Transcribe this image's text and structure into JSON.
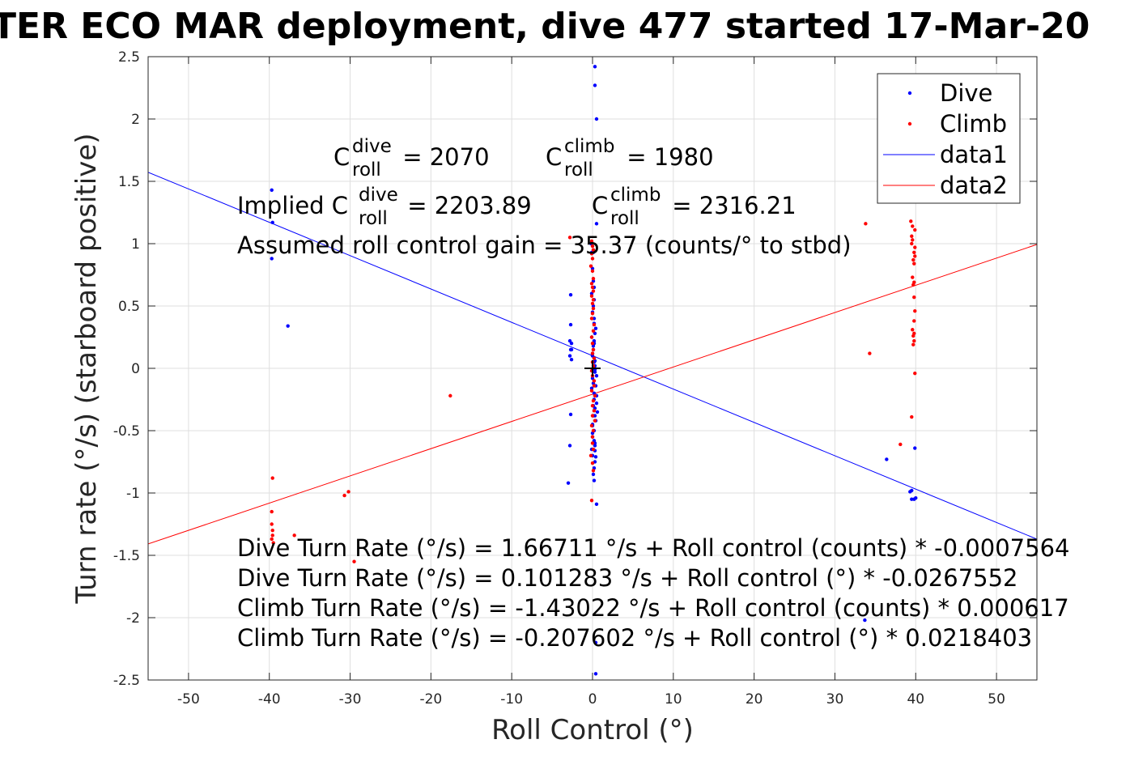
{
  "chart_data": {
    "type": "scatter",
    "title": "TER ECO MAR deployment, dive 477 started 17-Mar-20",
    "xlabel": "Roll Control (°)",
    "ylabel": "Turn rate (°/s) (starboard positive)",
    "xlim": [
      -55,
      55
    ],
    "ylim": [
      -2.5,
      2.5
    ],
    "xticks": [
      "-50",
      "-40",
      "-30",
      "-20",
      "-10",
      "0",
      "10",
      "20",
      "30",
      "40",
      "50"
    ],
    "yticks": [
      "-2.5",
      "-2",
      "-1.5",
      "-1",
      "-0.5",
      "0",
      "0.5",
      "1",
      "1.5",
      "2",
      "2.5"
    ],
    "grid": true,
    "legend_position": "top-right",
    "legend": [
      {
        "label": "Dive",
        "kind": "marker",
        "color": "#0000ff"
      },
      {
        "label": "Climb",
        "kind": "marker",
        "color": "#ff0000"
      },
      {
        "label": "data1",
        "kind": "line",
        "color": "#0000ff"
      },
      {
        "label": "data2",
        "kind": "line",
        "color": "#ff0000"
      }
    ],
    "series": [
      {
        "name": "Dive",
        "color": "#0000ff",
        "x": [
          0.3,
          0.3,
          0.5,
          0.5,
          0.4,
          0.4,
          0.5,
          -39.7,
          -39.6,
          -39.7,
          -37.7,
          -2.7,
          -2.7,
          -2.8,
          -2.6,
          -2.6,
          -2.8,
          -2.6,
          -2.7,
          -2.7,
          -2.8,
          -3.0,
          -0.2,
          -0.1,
          0.1,
          0,
          0.1,
          0.2,
          -0.1,
          0.2,
          0.1,
          0,
          0.2,
          0.4,
          -0.1,
          0.2,
          0.1,
          0,
          0.2,
          0.3,
          0.3,
          0,
          0.1,
          -0.1,
          0.2,
          0.2,
          0.5,
          0.3,
          0.6,
          0.1,
          0.4,
          0,
          0.2,
          0,
          0.3,
          -0.1,
          0,
          0.3,
          0.2,
          0.1,
          0.2,
          0.2,
          0.3,
          0.2,
          0.1,
          0,
          0.3,
          0.3,
          0.5,
          0.4,
          0.5,
          0.1,
          0.3,
          0,
          0,
          0.2,
          0.3,
          0.3,
          0.4,
          39.9,
          40.0,
          39.5,
          39.5,
          39.8,
          39.3,
          36.4,
          33.7
        ],
        "y": [
          2.42,
          2.27,
          2.0,
          1.16,
          -2.2,
          -2.45,
          -1.09,
          1.43,
          1.17,
          0.88,
          0.34,
          0.59,
          0.35,
          0.22,
          0.2,
          0.15,
          0.1,
          0.07,
          0.15,
          -0.37,
          -0.62,
          -0.92,
          1.0,
          0.93,
          0.93,
          0.8,
          0.7,
          0.65,
          0.6,
          0.55,
          0.5,
          0.45,
          0.4,
          0.32,
          0.25,
          0.2,
          0.15,
          0.1,
          0.05,
          0.02,
          -0.03,
          -0.08,
          -0.12,
          -0.16,
          -0.2,
          -0.25,
          -0.28,
          -0.32,
          -0.35,
          -0.38,
          -0.42,
          -0.45,
          -0.5,
          -0.55,
          -0.6,
          -0.65,
          -0.7,
          -0.75,
          -0.8,
          -0.85,
          -0.9,
          0.36,
          0.28,
          0.22,
          0.18,
          0.12,
          0.06,
          -0.01,
          -0.06,
          -0.14,
          -0.22,
          -0.3,
          -0.38,
          -0.46,
          -0.52,
          -0.58,
          -0.62,
          -0.66,
          -0.71,
          -0.64,
          -1.04,
          -0.98,
          -1.05,
          -1.05,
          -0.99,
          -0.73,
          -2.02
        ]
      },
      {
        "name": "Climb",
        "color": "#ff0000",
        "x": [
          -2.8,
          -0.1,
          0,
          0.1,
          -0.1,
          0,
          -0.2,
          0,
          0.1,
          -0.1,
          0,
          0.1,
          -0.1,
          0.1,
          0,
          0.1,
          0,
          -0.1,
          0.2,
          0.1,
          -0.1,
          0,
          0.1,
          0,
          0.2,
          0,
          0.1,
          -0.1,
          0,
          0.2,
          0.2,
          -0.1,
          0.3,
          0.1,
          0,
          0.2,
          0,
          0.3,
          -0.1,
          0.1,
          0,
          0,
          0.1,
          -0.2,
          0,
          0.1,
          -0.1,
          -17.6,
          -39.6,
          -39.7,
          -39.7,
          -39.6,
          -39.6,
          -39.7,
          -39.5,
          -36.9,
          -30.7,
          -30.2,
          -29.5,
          38.1,
          33.8,
          34.3,
          39.4,
          39.6,
          39.9,
          39.5,
          39.6,
          39.5,
          39.9,
          39.8,
          39.9,
          39.7,
          39.8,
          39.6,
          39.8,
          39.7,
          39.8,
          39.9,
          39.8,
          39.6,
          39.7,
          39.8,
          39.7,
          39.9,
          39.5,
          39.8
        ],
        "y": [
          1.05,
          1.02,
          0.98,
          0.95,
          0.92,
          0.88,
          0.82,
          0.78,
          0.72,
          0.68,
          0.65,
          0.62,
          0.58,
          0.55,
          0.52,
          0.48,
          0.44,
          0.4,
          0.35,
          0.3,
          0.25,
          0.2,
          0.15,
          0.12,
          0.08,
          0.05,
          0.02,
          -0.02,
          -0.06,
          -0.1,
          -0.14,
          -0.18,
          -0.22,
          -0.26,
          -0.3,
          -0.34,
          -0.38,
          -0.42,
          -0.46,
          -0.5,
          -0.55,
          -0.6,
          -0.65,
          -0.7,
          -0.76,
          -0.82,
          -1.06,
          -0.22,
          -0.88,
          -1.15,
          -1.25,
          -1.3,
          -1.34,
          -1.37,
          -1.4,
          -1.34,
          -1.02,
          -0.99,
          -1.55,
          -0.61,
          1.16,
          0.12,
          1.18,
          1.14,
          1.11,
          1.06,
          1.03,
          1.0,
          0.97,
          0.93,
          0.9,
          0.87,
          0.84,
          0.73,
          0.69,
          0.67,
          0.57,
          0.46,
          0.38,
          0.31,
          0.26,
          0.22,
          0.19,
          -0.04,
          -0.39,
          0.28
        ]
      }
    ],
    "fit_lines": [
      {
        "name": "data1",
        "color": "#0000ff",
        "intercept": 0.101283,
        "slope": -0.0267552
      },
      {
        "name": "data2",
        "color": "#ff0000",
        "intercept": -0.207602,
        "slope": 0.0218403
      }
    ],
    "origin_marker": "+",
    "annotations": {
      "c_dive": {
        "prefix": "C",
        "sup": "dive",
        "sub": "roll",
        "suffix": " = 2070"
      },
      "c_climb": {
        "prefix": "C",
        "sup": "climb",
        "sub": "roll",
        "suffix": " = 1980"
      },
      "implied_dive": {
        "prefix": "Implied C",
        "sup": "dive",
        "sub": "roll",
        "suffix": " = 2203.89"
      },
      "implied_climb": {
        "prefix": "C",
        "sup": "climb",
        "sub": "roll",
        "suffix": " = 2316.21"
      },
      "gain": "Assumed roll control gain = 35.37 (counts/° to stbd)",
      "eq1": "Dive Turn Rate (°/s) = 1.66711 °/s + Roll control (counts) * -0.0007564",
      "eq2": "Dive Turn Rate (°/s) = 0.101283 °/s + Roll control (°) * -0.0267552",
      "eq3": "Climb Turn Rate (°/s) = -1.43022 °/s + Roll control (counts) * 0.000617",
      "eq4": "Climb Turn Rate (°/s) = -0.207602 °/s + Roll control (°) * 0.0218403"
    }
  }
}
